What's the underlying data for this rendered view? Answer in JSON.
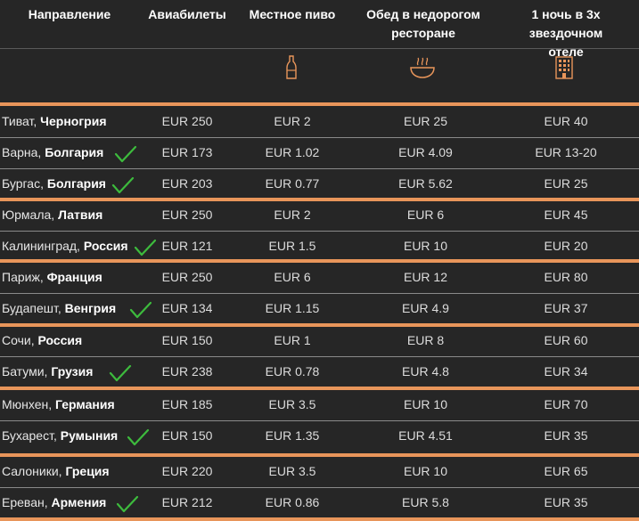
{
  "header": {
    "col0": "Направление",
    "col1": "Авиабилеты",
    "col2": "Местное пиво",
    "col3": "Обед в недорогом ресторане",
    "col4": "1 ночь в 3х звездочном отеле",
    "icons": [
      "bottle-icon",
      "bowl-icon",
      "hotel-icon"
    ]
  },
  "accent_color": "#e8955a",
  "check_color": "#3dbb3d",
  "rows": [
    {
      "city": "Тиват, ",
      "country": "Черногрия",
      "check": false,
      "flights": "EUR 250",
      "beer": "EUR 2",
      "lunch": "EUR 25",
      "hotel": "EUR 40"
    },
    {
      "city": "Варна, ",
      "country": "Болгария",
      "check": true,
      "flights": "EUR 173",
      "beer": "EUR 1.02",
      "lunch": "EUR 4.09",
      "hotel": "EUR 13-20"
    },
    {
      "city": "Бургас, ",
      "country": "Болгария",
      "check": true,
      "flights": "EUR 203",
      "beer": "EUR 0.77",
      "lunch": "EUR 5.62",
      "hotel": "EUR 25"
    },
    {
      "city": "Юрмала, ",
      "country": "Латвия",
      "check": false,
      "flights": "EUR 250",
      "beer": "EUR 2",
      "lunch": "EUR 6",
      "hotel": "EUR 45"
    },
    {
      "city": "Калининград, ",
      "country": "Россия",
      "check": true,
      "flights": "EUR 121",
      "beer": "EUR 1.5",
      "lunch": "EUR 10",
      "hotel": "EUR 20"
    },
    {
      "city": "Париж, ",
      "country": "Франция",
      "check": false,
      "flights": "EUR 250",
      "beer": "EUR 6",
      "lunch": "EUR 12",
      "hotel": "EUR 80"
    },
    {
      "city": "Будапешт, ",
      "country": "Венгрия",
      "check": true,
      "flights": "EUR 134",
      "beer": "EUR 1.15",
      "lunch": "EUR 4.9",
      "hotel": "EUR 37"
    },
    {
      "city": "Сочи, ",
      "country": "Россия",
      "check": false,
      "flights": "EUR 150",
      "beer": "EUR 1",
      "lunch": "EUR 8",
      "hotel": "EUR 60"
    },
    {
      "city": "Батуми, ",
      "country": "Грузия",
      "check": true,
      "flights": "EUR 238",
      "beer": "EUR 0.78",
      "lunch": "EUR 4.8",
      "hotel": "EUR 34"
    },
    {
      "city": "Мюнхен, ",
      "country": "Германия",
      "check": false,
      "flights": "EUR 185",
      "beer": "EUR 3.5",
      "lunch": "EUR 10",
      "hotel": "EUR 70"
    },
    {
      "city": "Бухарест, ",
      "country": "Румыния",
      "check": true,
      "flights": "EUR 150",
      "beer": "EUR 1.35",
      "lunch": "EUR 4.51",
      "hotel": "EUR 35"
    },
    {
      "city": "Салоники, ",
      "country": "Греция",
      "check": false,
      "flights": "EUR 220",
      "beer": "EUR 3.5",
      "lunch": "EUR 10",
      "hotel": "EUR 65"
    },
    {
      "city": "Ереван, ",
      "country": "Армения",
      "check": true,
      "flights": "EUR 212",
      "beer": "EUR 0.86",
      "lunch": "EUR 5.8",
      "hotel": "EUR 35"
    }
  ]
}
